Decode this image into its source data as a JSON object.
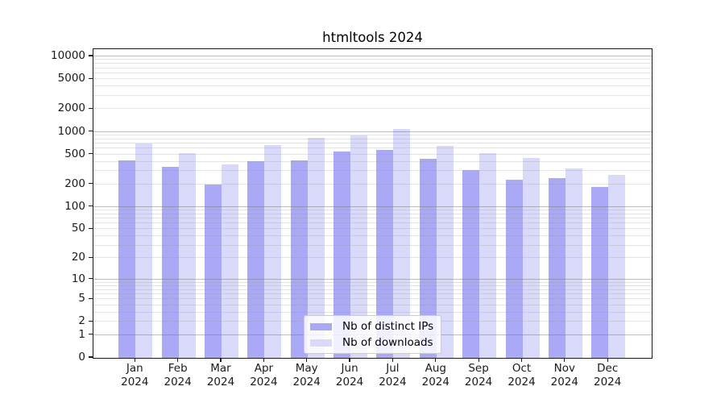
{
  "title": "htmltools 2024",
  "legend": {
    "items": [
      {
        "label": "Nb of distinct IPs",
        "color": "#a9a9f6"
      },
      {
        "label": "Nb of downloads",
        "color": "#d9d9f9"
      }
    ]
  },
  "chart_data": {
    "type": "bar",
    "title": "htmltools 2024",
    "categories": [
      "Jan",
      "Feb",
      "Mar",
      "Apr",
      "May",
      "Jun",
      "Jul",
      "Aug",
      "Sep",
      "Oct",
      "Nov",
      "Dec"
    ],
    "year": "2024",
    "series": [
      {
        "name": "Nb of distinct IPs",
        "color": "#a9a9f6",
        "values": [
          415,
          342,
          200,
          408,
          413,
          540,
          580,
          441,
          307,
          231,
          244,
          184
        ]
      },
      {
        "name": "Nb of downloads",
        "color": "#d9d9f9",
        "values": [
          700,
          515,
          370,
          665,
          830,
          885,
          1082,
          650,
          520,
          446,
          328,
          268
        ]
      }
    ],
    "xlabel": "",
    "ylabel": "",
    "yscale": "log1p",
    "yticks": [
      0,
      1,
      2,
      5,
      10,
      20,
      50,
      100,
      200,
      500,
      1000,
      2000,
      5000,
      10000
    ],
    "ylim": [
      0,
      12500
    ],
    "grid": "both",
    "legend_position": "lower center"
  }
}
